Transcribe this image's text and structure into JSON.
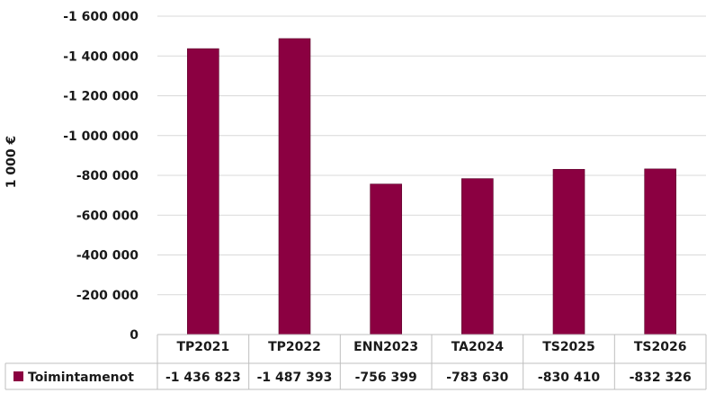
{
  "chart_data": {
    "type": "table",
    "chart_kind": "bar",
    "ylabel": "1 000 €",
    "ylim": [
      0,
      -1600000
    ],
    "y_ticks": [
      "-1 600 000",
      "-1 400 000",
      "-1 200 000",
      "-1 000 000",
      "-800 000",
      "-600 000",
      "-400 000",
      "-200 000",
      "0"
    ],
    "y_tick_values": [
      -1600000,
      -1400000,
      -1200000,
      -1000000,
      -800000,
      -600000,
      -400000,
      -200000,
      0
    ],
    "categories": [
      "TP2021",
      "TP2022",
      "ENN2023",
      "TA2024",
      "TS2025",
      "TS2026"
    ],
    "series": [
      {
        "name": "Toimintamenot",
        "values": [
          -1436823,
          -1487393,
          -756399,
          -783630,
          -830410,
          -832326
        ],
        "labels": [
          "-1 436 823",
          "-1 487 393",
          "-756 399",
          "-783 630",
          "-830 410",
          "-832 326"
        ],
        "color": "#8b0041"
      }
    ],
    "grid": true,
    "legend": "data-table",
    "colors": {
      "bar": "#8b0041",
      "grid": "#d9d9d9",
      "table_border": "#bfbfbf"
    }
  }
}
